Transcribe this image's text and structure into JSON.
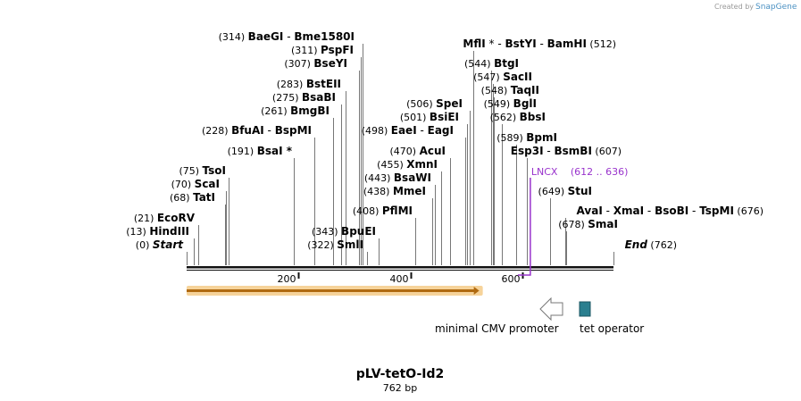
{
  "credit": {
    "prefix": "Created by",
    "brand": "SnapGene"
  },
  "sequence": {
    "length": 762
  },
  "colors": {
    "backbone": "#111111",
    "site_line": "#777777",
    "feature_primer": "#9933cc",
    "feature_orf": "#f0a030",
    "tet_operator_fill": "#2a7f8f",
    "promoter_fill": "#ffffff"
  },
  "ruler": [
    {
      "pos": 200,
      "label": "200"
    },
    {
      "pos": 400,
      "label": "400"
    },
    {
      "pos": 600,
      "label": "600"
    }
  ],
  "sites": [
    {
      "pos": 0,
      "parts": [
        {
          "t": "Start",
          "italic": true
        }
      ],
      "pos_label": "(0)"
    },
    {
      "pos": 13,
      "parts": [
        {
          "t": "HindIII"
        }
      ],
      "pos_label": "(13)"
    },
    {
      "pos": 21,
      "parts": [
        {
          "t": "EcoRV"
        }
      ],
      "pos_label": "(21)"
    },
    {
      "pos": 68,
      "parts": [
        {
          "t": "TatI"
        }
      ],
      "pos_label": "(68)"
    },
    {
      "pos": 70,
      "parts": [
        {
          "t": "ScaI"
        }
      ],
      "pos_label": "(70)"
    },
    {
      "pos": 75,
      "parts": [
        {
          "t": "TsoI"
        }
      ],
      "pos_label": "(75)"
    },
    {
      "pos": 191,
      "parts": [
        {
          "t": "BsaI"
        },
        {
          "t": " *"
        }
      ],
      "pos_label": "(191)"
    },
    {
      "pos": 228,
      "parts": [
        {
          "t": "BfuAI"
        },
        {
          "t": " - ",
          "sep": true
        },
        {
          "t": "BspMI"
        }
      ],
      "pos_label": "(228)"
    },
    {
      "pos": 261,
      "parts": [
        {
          "t": "BmgBI"
        }
      ],
      "pos_label": "(261)"
    },
    {
      "pos": 275,
      "parts": [
        {
          "t": "BsaBI"
        }
      ],
      "pos_label": "(275)"
    },
    {
      "pos": 283,
      "parts": [
        {
          "t": "BstEII"
        }
      ],
      "pos_label": "(283)"
    },
    {
      "pos": 307,
      "parts": [
        {
          "t": "BseYI"
        }
      ],
      "pos_label": "(307)"
    },
    {
      "pos": 311,
      "parts": [
        {
          "t": "PspFI"
        }
      ],
      "pos_label": "(311)"
    },
    {
      "pos": 314,
      "parts": [
        {
          "t": "BaeGI"
        },
        {
          "t": " - ",
          "sep": true
        },
        {
          "t": "Bme1580I"
        }
      ],
      "pos_label": "(314)"
    },
    {
      "pos": 322,
      "parts": [
        {
          "t": "SmlI"
        }
      ],
      "pos_label": "(322)"
    },
    {
      "pos": 343,
      "parts": [
        {
          "t": "BpuEI"
        }
      ],
      "pos_label": "(343)"
    },
    {
      "pos": 408,
      "parts": [
        {
          "t": "PflMI"
        }
      ],
      "pos_label": "(408)"
    },
    {
      "pos": 438,
      "parts": [
        {
          "t": "MmeI"
        }
      ],
      "pos_label": "(438)"
    },
    {
      "pos": 443,
      "parts": [
        {
          "t": "BsaWI"
        }
      ],
      "pos_label": "(443)"
    },
    {
      "pos": 455,
      "parts": [
        {
          "t": "XmnI"
        }
      ],
      "pos_label": "(455)"
    },
    {
      "pos": 470,
      "parts": [
        {
          "t": "AcuI"
        }
      ],
      "pos_label": "(470)"
    },
    {
      "pos": 498,
      "parts": [
        {
          "t": "EaeI"
        },
        {
          "t": " - ",
          "sep": true
        },
        {
          "t": "EagI"
        }
      ],
      "pos_label": "(498)"
    },
    {
      "pos": 501,
      "parts": [
        {
          "t": "BsiEI"
        }
      ],
      "pos_label": "(501)"
    },
    {
      "pos": 506,
      "parts": [
        {
          "t": "SpeI"
        }
      ],
      "pos_label": "(506)"
    },
    {
      "pos": 512,
      "parts": [
        {
          "t": "MflI"
        },
        {
          "t": " * - ",
          "sep": true
        },
        {
          "t": "BstYI"
        },
        {
          "t": " - ",
          "sep": true
        },
        {
          "t": "BamHI"
        }
      ],
      "pos_label": "(512)"
    },
    {
      "pos": 544,
      "parts": [
        {
          "t": "BtgI"
        }
      ],
      "pos_label": "(544)"
    },
    {
      "pos": 547,
      "parts": [
        {
          "t": "SacII"
        }
      ],
      "pos_label": "(547)"
    },
    {
      "pos": 548,
      "parts": [
        {
          "t": "TaqII"
        }
      ],
      "pos_label": "(548)"
    },
    {
      "pos": 549,
      "parts": [
        {
          "t": "BglI"
        }
      ],
      "pos_label": "(549)"
    },
    {
      "pos": 562,
      "parts": [
        {
          "t": "BbsI"
        }
      ],
      "pos_label": "(562)"
    },
    {
      "pos": 589,
      "parts": [
        {
          "t": "BpmI"
        }
      ],
      "pos_label": "(589)"
    },
    {
      "pos": 607,
      "parts": [
        {
          "t": "Esp3I"
        },
        {
          "t": " - ",
          "sep": true
        },
        {
          "t": "BsmBI"
        }
      ],
      "pos_label": "(607)"
    },
    {
      "pos": 649,
      "parts": [
        {
          "t": "StuI"
        }
      ],
      "pos_label": "(649)"
    },
    {
      "pos": 676,
      "parts": [
        {
          "t": "AvaI"
        },
        {
          "t": " - ",
          "sep": true
        },
        {
          "t": "XmaI"
        },
        {
          "t": " - ",
          "sep": true
        },
        {
          "t": "BsoBI"
        },
        {
          "t": " - ",
          "sep": true
        },
        {
          "t": "TspMI"
        }
      ],
      "pos_label": "(676)"
    },
    {
      "pos": 678,
      "parts": [
        {
          "t": "SmaI"
        }
      ],
      "pos_label": "(678)"
    },
    {
      "pos": 762,
      "parts": [
        {
          "t": "End",
          "italic": true
        }
      ],
      "pos_label": "(762)"
    }
  ],
  "features": {
    "lncx": {
      "name": "LNCX",
      "range_label": "(612 .. 636)",
      "start": 612,
      "end": 636
    },
    "orf": {
      "start": 1,
      "end": 500
    }
  },
  "legend": {
    "promoter_label": "minimal CMV promoter",
    "operator_label": "tet operator"
  },
  "title": {
    "name": "pLV-tetO-Id2",
    "size": "762 bp"
  }
}
